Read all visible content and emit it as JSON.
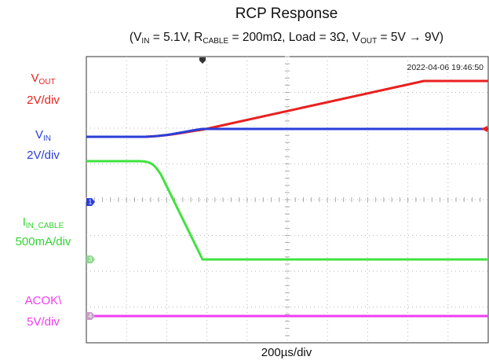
{
  "title": "RCP Response",
  "subtitle": [
    {
      "text": "(V",
      "sub": false
    },
    {
      "text": "IN",
      "sub": true
    },
    {
      "text": " = 5.1V, R",
      "sub": false
    },
    {
      "text": "CABLE",
      "sub": true
    },
    {
      "text": " = 200mΩ, Load = 3Ω, V",
      "sub": false
    },
    {
      "text": "OUT",
      "sub": true
    },
    {
      "text": " = 5V → 9V)",
      "sub": false
    }
  ],
  "channels": [
    {
      "name": [
        "V",
        "OUT"
      ],
      "scale": "2V/div",
      "color": "#e8211f"
    },
    {
      "name": [
        "V",
        "IN"
      ],
      "scale": "2V/div",
      "color": "#2a3ed8"
    },
    {
      "name": [
        "I",
        "IN_CABLE"
      ],
      "scale": "500mA/div",
      "color": "#33d433"
    },
    {
      "name": [
        "ACOK\\"
      ],
      "scale": "5V/div",
      "color": "#f23cf2"
    }
  ],
  "markers": [
    "1",
    "3",
    "4"
  ],
  "timestamp": "2022-04-06 19:46:50",
  "timebase": "200µs/div"
}
